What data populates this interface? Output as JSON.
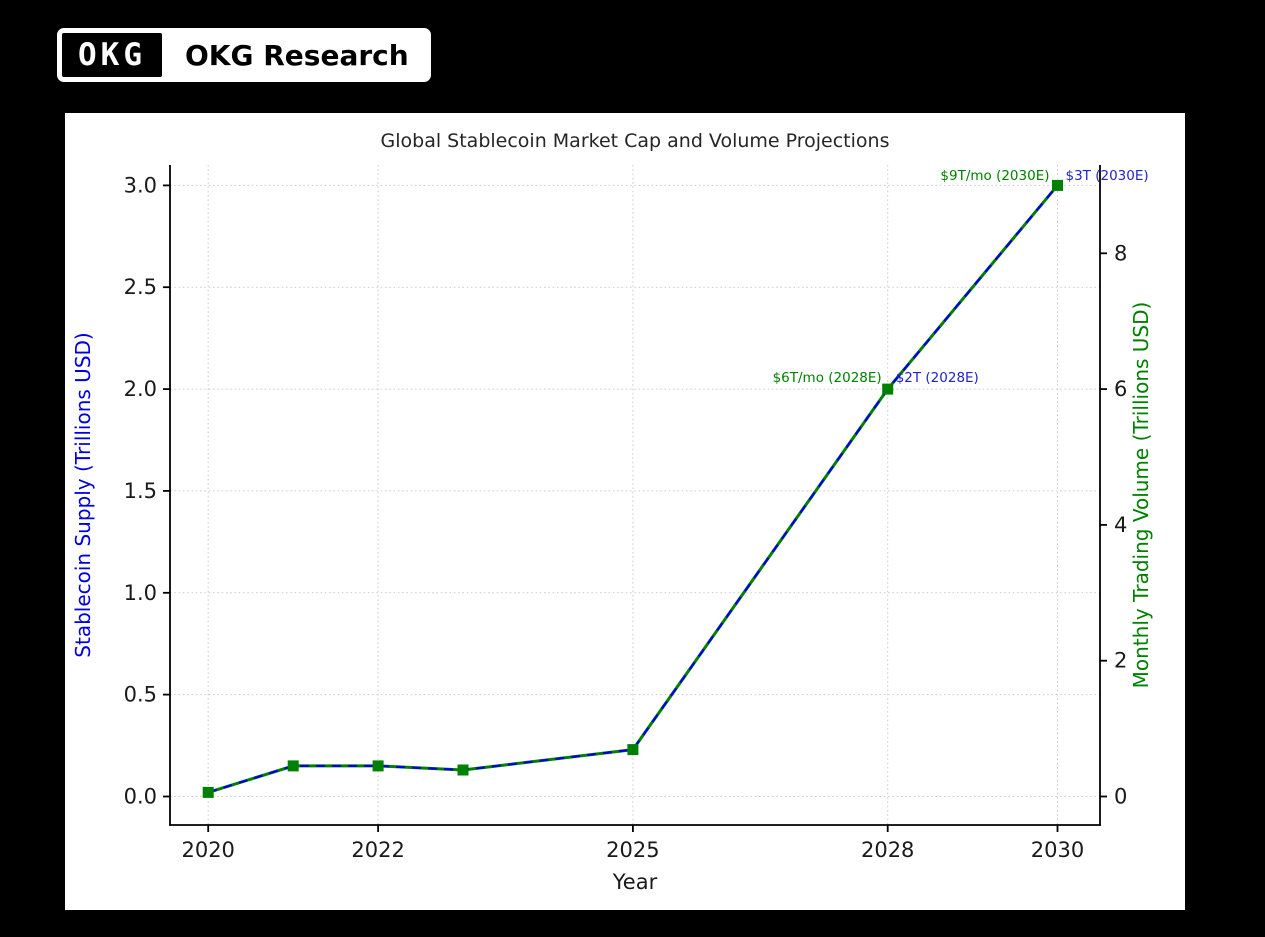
{
  "header": {
    "logo_text": "OKG",
    "brand_text": "OKG Research"
  },
  "chart_data": {
    "type": "line",
    "title": "Global Stablecoin Market Cap and Volume Projections",
    "xlabel": "Year",
    "grid": true,
    "legend": "none",
    "x_axis": {
      "ticks": [
        2020,
        2022,
        2025,
        2028,
        2030
      ],
      "range": [
        2019.55,
        2030.5
      ]
    },
    "left_axis": {
      "label": "Stablecoin Supply (Trillions USD)",
      "color": "#0000dd",
      "ticks": [
        0.0,
        0.5,
        1.0,
        1.5,
        2.0,
        2.5,
        3.0
      ],
      "range": [
        -0.14,
        3.1
      ]
    },
    "right_axis": {
      "label": "Monthly Trading Volume (Trillions USD)",
      "color": "#008000",
      "ticks": [
        0,
        2,
        4,
        6,
        8
      ],
      "range": [
        -0.42,
        9.3
      ]
    },
    "x": [
      2020,
      2021,
      2022,
      2023,
      2025,
      2028,
      2030
    ],
    "series": [
      {
        "name": "Monthly Trading Volume",
        "axis": "right",
        "values": [
          0.06,
          0.45,
          0.45,
          0.39,
          0.69,
          6.0,
          9.0
        ],
        "color": "#008000",
        "style": "solid",
        "marker": "square"
      },
      {
        "name": "Stablecoin Supply",
        "axis": "left",
        "values": [
          0.02,
          0.15,
          0.15,
          0.13,
          0.23,
          2.0,
          3.0
        ],
        "color": "#0000dd",
        "style": "dashed",
        "marker": "none"
      }
    ],
    "annotations": [
      {
        "text": "$9T/mo (2030E)",
        "color": "#008000",
        "x": 2030,
        "y_left": 3.05,
        "anchor": "end",
        "dx": -8
      },
      {
        "text": "$3T (2030E)",
        "color": "#2222cc",
        "x": 2030,
        "y_left": 3.05,
        "anchor": "start",
        "dx": 8
      },
      {
        "text": "$6T/mo (2028E)",
        "color": "#008000",
        "x": 2028,
        "y_left": 2.06,
        "anchor": "end",
        "dx": -6
      },
      {
        "text": "$2T (2028E)",
        "color": "#2222cc",
        "x": 2028,
        "y_left": 2.06,
        "anchor": "start",
        "dx": 8
      }
    ]
  }
}
